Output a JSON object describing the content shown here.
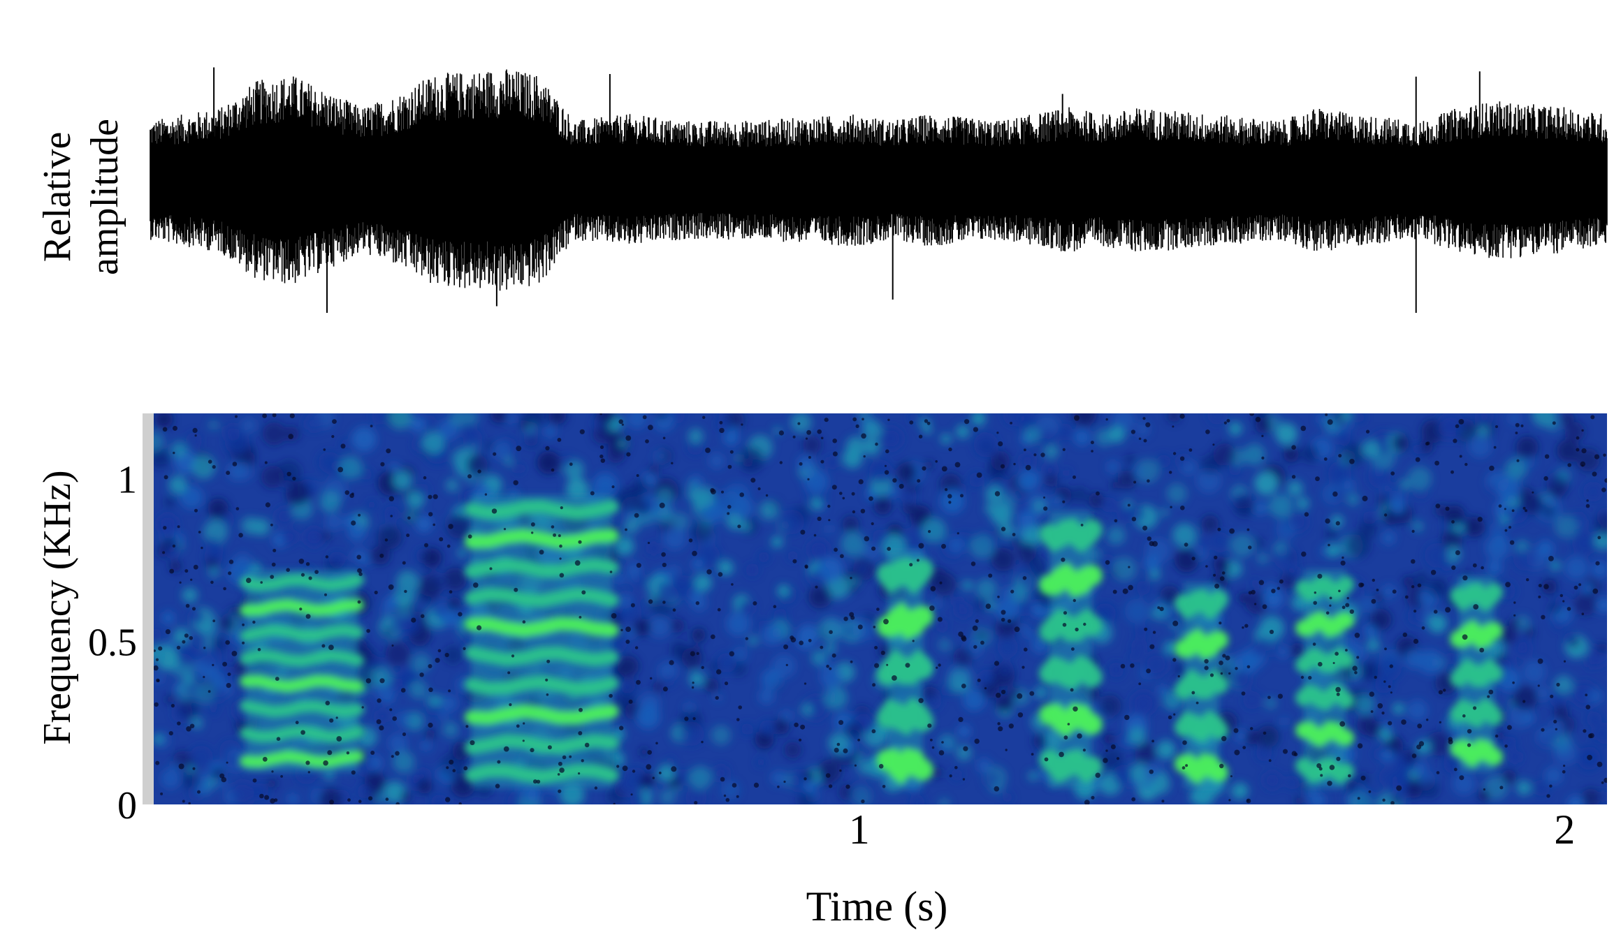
{
  "chart_data": [
    {
      "type": "line",
      "panel": "waveform",
      "ylabel_lines": [
        "Relative",
        "amplitude"
      ],
      "x_unit": "s",
      "x_range": [
        0,
        2.06
      ],
      "y_range": [
        -1,
        1
      ],
      "show_axes": false,
      "envelope": {
        "x": [
          0.0,
          0.1,
          0.15,
          0.2,
          0.3,
          0.35,
          0.4,
          0.5,
          0.55,
          0.6,
          0.68,
          0.75,
          0.85,
          1.0,
          1.05,
          1.1,
          1.2,
          1.3,
          1.35,
          1.4,
          1.5,
          1.6,
          1.65,
          1.7,
          1.8,
          1.85,
          1.9,
          2.0,
          2.06
        ],
        "y": [
          0.45,
          0.55,
          0.75,
          0.8,
          0.55,
          0.65,
          0.8,
          0.85,
          0.8,
          0.45,
          0.5,
          0.45,
          0.45,
          0.5,
          0.45,
          0.5,
          0.45,
          0.55,
          0.5,
          0.55,
          0.5,
          0.45,
          0.55,
          0.5,
          0.45,
          0.55,
          0.6,
          0.55,
          0.5
        ]
      },
      "peaks": [
        {
          "x": 0.09,
          "y": 0.85
        },
        {
          "x": 0.25,
          "y": -1.0
        },
        {
          "x": 0.49,
          "y": -0.95
        },
        {
          "x": 0.65,
          "y": 0.8
        },
        {
          "x": 1.05,
          "y": -0.9
        },
        {
          "x": 1.29,
          "y": 0.65
        },
        {
          "x": 1.79,
          "y": -1.0
        },
        {
          "x": 1.79,
          "y": 0.78
        },
        {
          "x": 1.88,
          "y": 0.82
        }
      ]
    },
    {
      "type": "heatmap",
      "panel": "spectrogram",
      "ylabel": "Frequency (KHz)",
      "xlabel": "Time (s)",
      "xlim": [
        0,
        2.06
      ],
      "ylim": [
        0,
        1.2
      ],
      "xticks": [
        {
          "value": 1,
          "label": "1"
        },
        {
          "value": 2,
          "label": "2"
        }
      ],
      "yticks": [
        {
          "value": 0,
          "label": "0"
        },
        {
          "value": 0.5,
          "label": "0.5"
        },
        {
          "value": 1,
          "label": "1"
        }
      ],
      "colormap": [
        "#0a1f6e",
        "#13389e",
        "#1a5cb8",
        "#1f8fb0",
        "#2bc48a",
        "#4ef25a"
      ],
      "background_color": "#1a3d9e",
      "calls": [
        {
          "t_start": 0.13,
          "t_end": 0.29,
          "f_low": 0.1,
          "f_high": 0.72,
          "rows": 8
        },
        {
          "t_start": 0.45,
          "t_end": 0.65,
          "f_low": 0.05,
          "f_high": 0.95,
          "rows": 10
        },
        {
          "t_start": 1.04,
          "t_end": 1.09,
          "f_low": 0.05,
          "f_high": 0.78,
          "rows": 5
        },
        {
          "t_start": 1.27,
          "t_end": 1.33,
          "f_low": 0.05,
          "f_high": 0.9,
          "rows": 6
        },
        {
          "t_start": 1.46,
          "t_end": 1.51,
          "f_low": 0.05,
          "f_high": 0.68,
          "rows": 5
        },
        {
          "t_start": 1.63,
          "t_end": 1.69,
          "f_low": 0.05,
          "f_high": 0.72,
          "rows": 6
        },
        {
          "t_start": 1.85,
          "t_end": 1.9,
          "f_low": 0.1,
          "f_high": 0.7,
          "rows": 5
        }
      ]
    }
  ]
}
